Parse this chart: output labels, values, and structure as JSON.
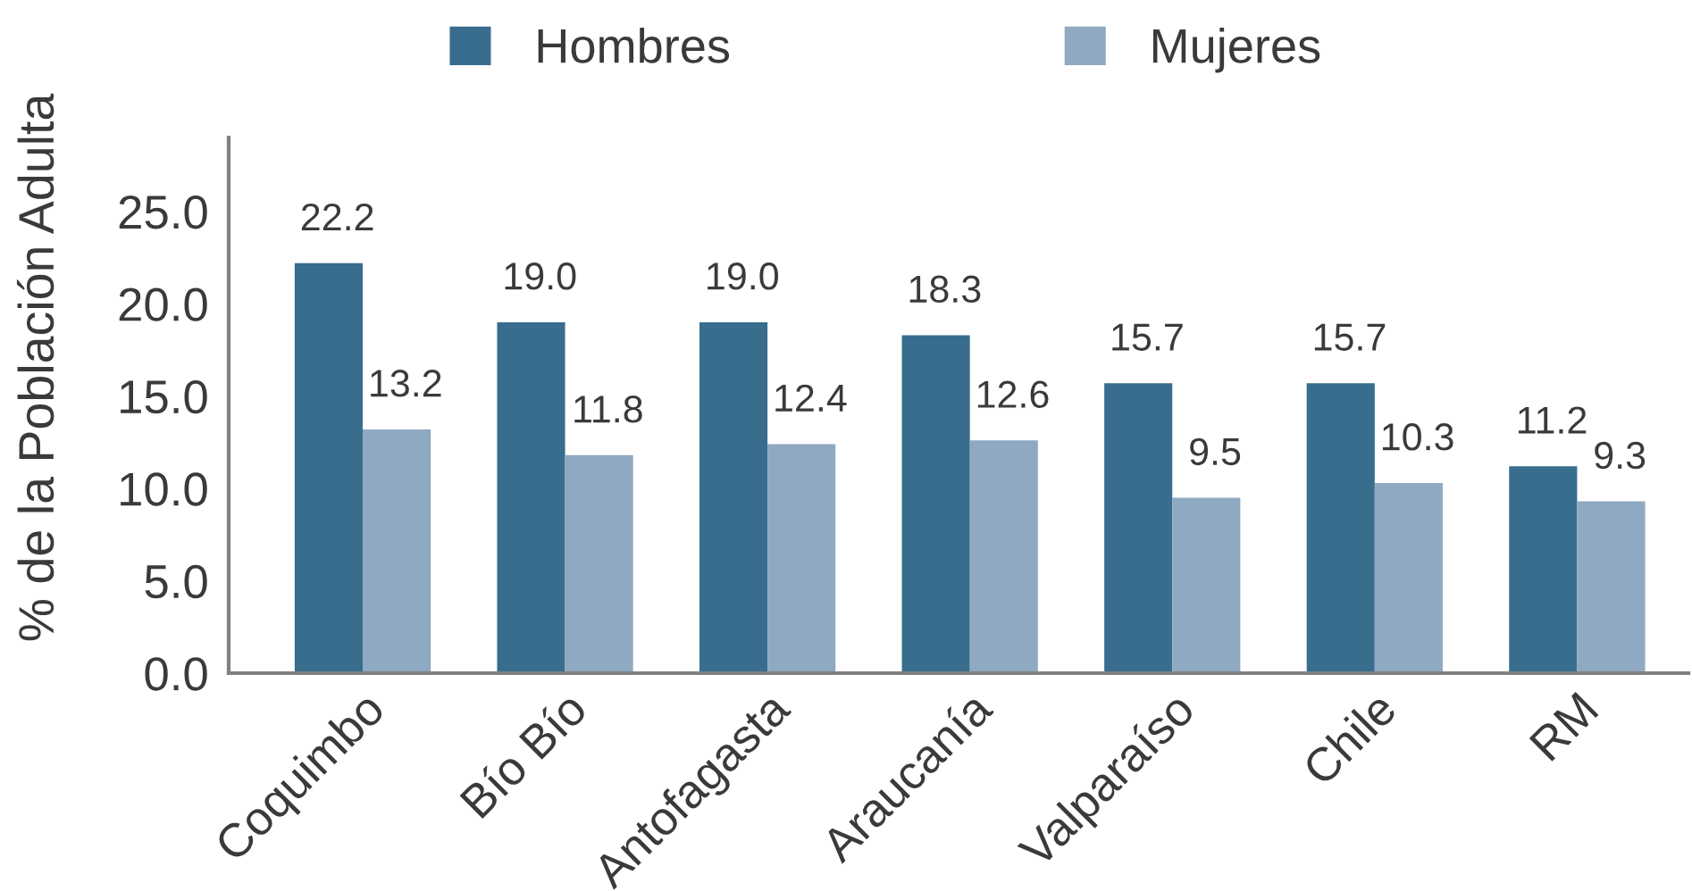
{
  "chart_data": {
    "type": "bar",
    "ylabel": "% de la Población Adulta",
    "categories": [
      "Coquimbo",
      "Bío Bío",
      "Antofagasta",
      "Araucanía",
      "Valparaíso",
      "Chile",
      "RM"
    ],
    "series": [
      {
        "name": "Hombres",
        "color": "#386d8e",
        "values": [
          22.2,
          19.0,
          19.0,
          18.3,
          15.7,
          15.7,
          11.2
        ],
        "value_labels": [
          "22.2",
          "19.0",
          "19.0",
          "18.3",
          "15.7",
          "15.7",
          "11.2"
        ]
      },
      {
        "name": "Mujeres",
        "color": "#8ea9c1",
        "values": [
          13.2,
          11.8,
          12.4,
          12.6,
          9.5,
          10.3,
          9.3
        ],
        "value_labels": [
          "13.2",
          "11.8",
          "12.4",
          "12.6",
          "9.5",
          "10.3",
          "9.3"
        ]
      }
    ],
    "ylim": [
      0,
      29
    ],
    "yticks": [
      {
        "value": 0,
        "label": "0.0"
      },
      {
        "value": 5,
        "label": "5.0"
      },
      {
        "value": 10,
        "label": "10.0"
      },
      {
        "value": 15,
        "label": "15.0"
      },
      {
        "value": 20,
        "label": "20.0"
      },
      {
        "value": 25,
        "label": "25.0"
      }
    ],
    "grid": false,
    "legend": "top"
  }
}
